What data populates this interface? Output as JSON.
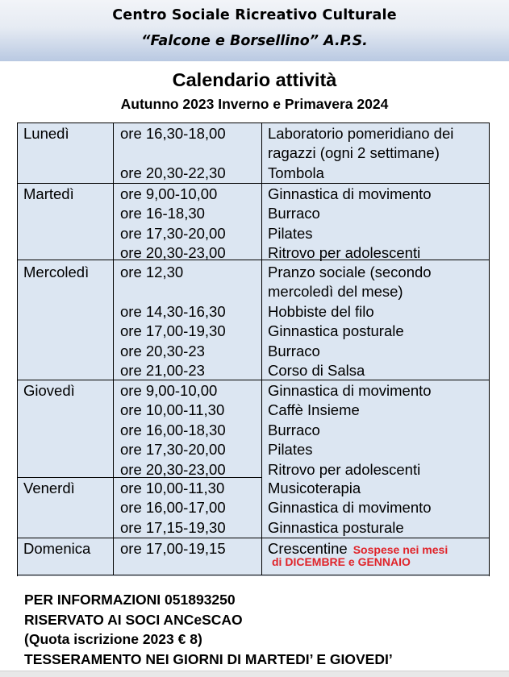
{
  "header": {
    "org_line1": "Centro Sociale Ricreativo Culturale",
    "org_line2": "“Falcone e Borsellino” A.P.S."
  },
  "title": "Calendario attività",
  "subtitle": "Autunno 2023 Inverno e Primavera 2024",
  "schedule": [
    {
      "day": "Lunedì",
      "times": [
        "ore 16,30-18,00",
        "",
        "ore 20,30-22,30"
      ],
      "activities": [
        "Laboratorio pomeridiano dei",
        "ragazzi (ogni 2 settimane)",
        "Tombola"
      ]
    },
    {
      "day": "Martedì",
      "times": [
        "ore 9,00-10,00",
        "ore 16-18,30",
        "ore 17,30-20,00",
        "ore 20,30-23,00"
      ],
      "activities": [
        "Ginnastica di movimento",
        "Burraco",
        "Pilates",
        "Ritrovo per adolescenti"
      ]
    },
    {
      "day": "Mercoledì",
      "times": [
        "ore 12,30",
        "",
        "ore 14,30-16,30",
        "ore 17,00-19,30",
        "ore 20,30-23",
        "ore 21,00-23"
      ],
      "activities": [
        "Pranzo sociale (secondo",
        "mercoledì del mese)",
        "Hobbiste del filo",
        "Ginnastica posturale",
        "Burraco",
        "Corso di Salsa"
      ]
    },
    {
      "day": "Giovedì",
      "times": [
        "ore 9,00-10,00",
        "ore 10,00-11,30",
        "ore 16,00-18,30",
        "ore 17,30-20,00",
        "ore 20,30-23,00"
      ],
      "activities": [
        "Ginnastica di movimento",
        "Caffè Insieme",
        "Burraco",
        "Pilates",
        "Ritrovo per adolescenti"
      ]
    },
    {
      "day": "Venerdì",
      "times": [
        "ore 10,00-11,30",
        "ore 16,00-17,00",
        "ore 17,15-19,30"
      ],
      "activities": [
        "Musicoterapia",
        "Ginnastica di movimento",
        "Ginnastica posturale"
      ]
    },
    {
      "day": "Domenica",
      "times": [
        "ore 17,00-19,15"
      ],
      "activities": [
        "Crescentine"
      ],
      "note": [
        "Sospese nei mesi",
        "di DICEMBRE e GENNAIO"
      ]
    }
  ],
  "footer": {
    "line1": "PER INFORMAZIONI 051893250",
    "line2": "RISERVATO AI SOCI ANCeSCAO",
    "line3": "(Quota iscrizione 2023 € 8)",
    "line4": "TESSERAMENTO NEI GIORNI DI MARTEDI’ E GIOVEDI’"
  },
  "colors": {
    "banner_bottom": "#b9c9e2",
    "table_bg": "#dce6f2",
    "note_red": "#e0242a"
  }
}
